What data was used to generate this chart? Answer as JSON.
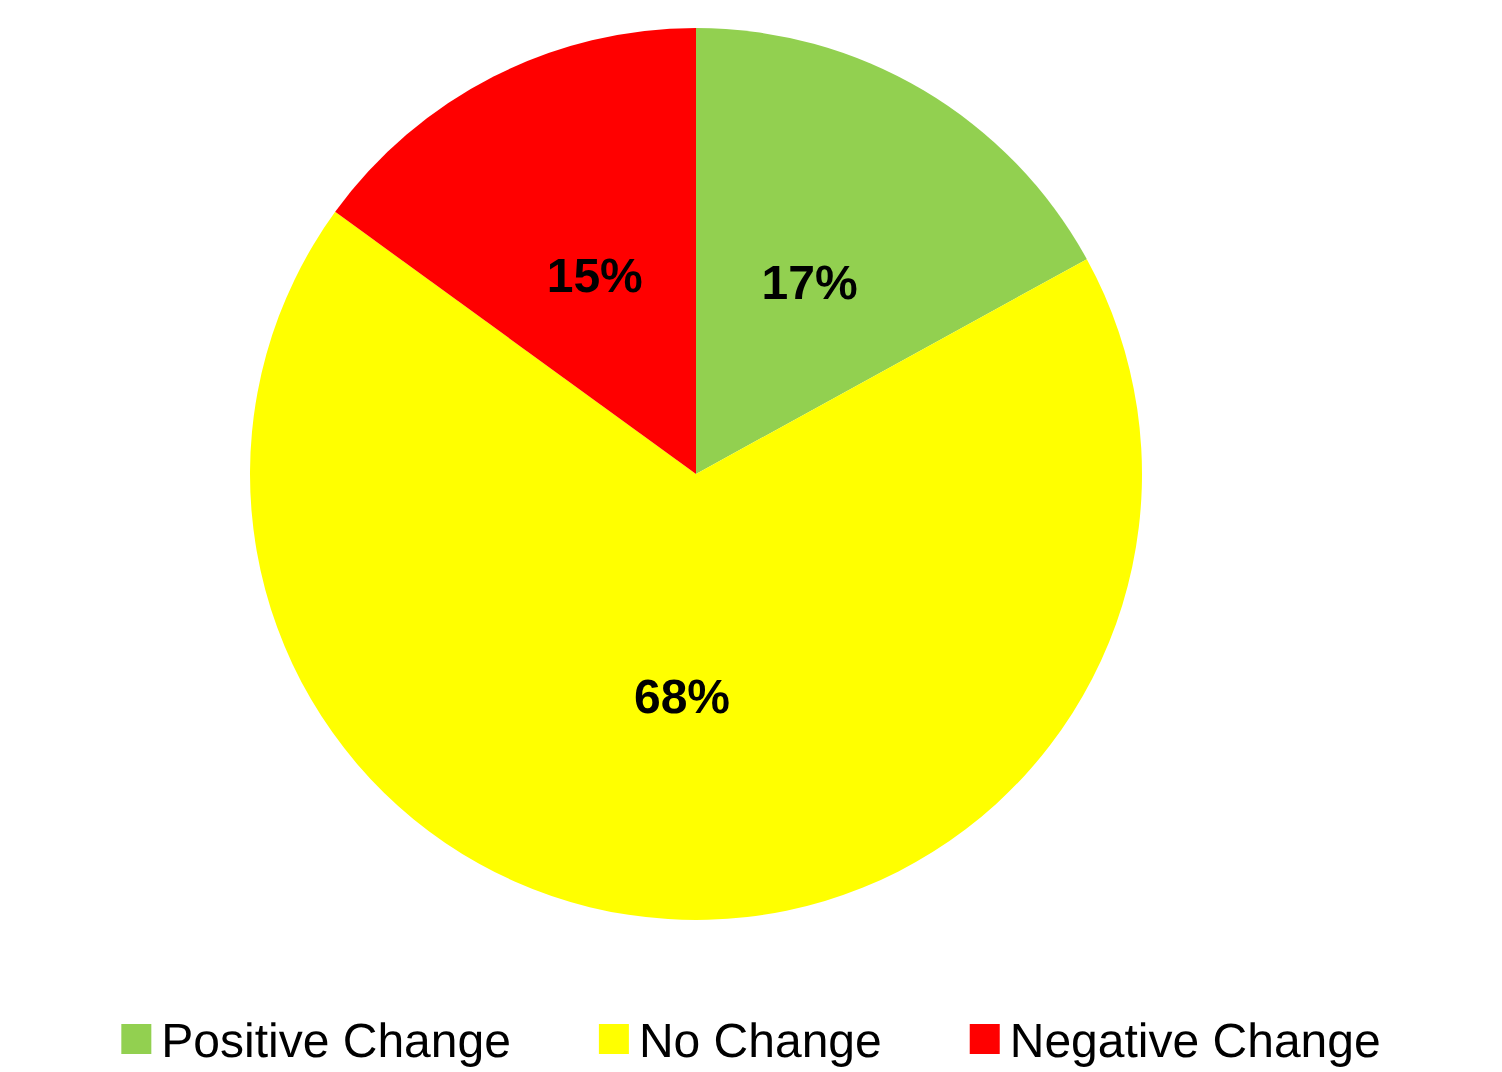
{
  "chart_data": {
    "type": "pie",
    "categories": [
      "Positive Change",
      "No Change",
      "Negative Change"
    ],
    "values": [
      17,
      68,
      15
    ],
    "colors": [
      "#92d050",
      "#ffff00",
      "#ff0000"
    ],
    "value_labels": [
      "17%",
      "68%",
      "15%"
    ],
    "legend": "bottom"
  }
}
